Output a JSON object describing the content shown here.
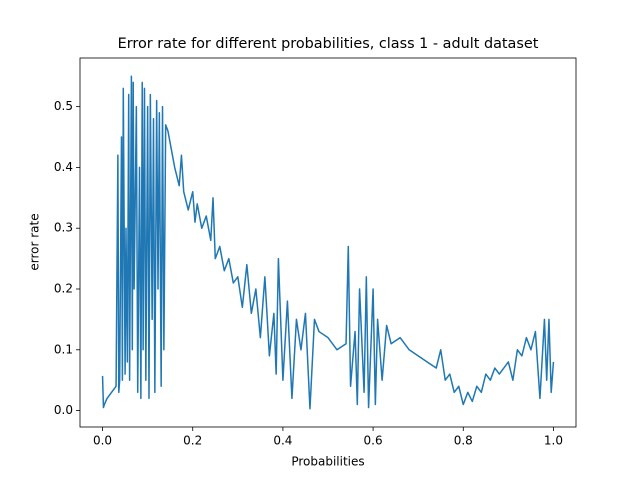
{
  "chart_data": {
    "type": "line",
    "title": "Error rate for different probabilities, class 1 - adult dataset",
    "xlabel": "Probabilities",
    "ylabel": "error rate",
    "xlim": [
      -0.05,
      1.05
    ],
    "ylim": [
      -0.027,
      0.58
    ],
    "xticks": [
      {
        "value": 0,
        "label": "0.0"
      },
      0.2,
      0.4,
      0.6,
      0.8,
      {
        "value": 1,
        "label": "1.0"
      }
    ],
    "yticks": [
      {
        "value": 0,
        "label": "0.0"
      },
      0.1,
      0.2,
      0.3,
      0.4,
      0.5
    ],
    "grid": false,
    "x": [
      0.0,
      0.002,
      0.004,
      0.01,
      0.02,
      0.03,
      0.034,
      0.036,
      0.038,
      0.042,
      0.044,
      0.046,
      0.05,
      0.052,
      0.055,
      0.058,
      0.06,
      0.064,
      0.066,
      0.068,
      0.07,
      0.075,
      0.078,
      0.082,
      0.085,
      0.088,
      0.09,
      0.093,
      0.096,
      0.1,
      0.103,
      0.106,
      0.11,
      0.113,
      0.116,
      0.12,
      0.123,
      0.126,
      0.13,
      0.133,
      0.136,
      0.14,
      0.145,
      0.15,
      0.16,
      0.17,
      0.175,
      0.18,
      0.19,
      0.2,
      0.205,
      0.21,
      0.22,
      0.23,
      0.24,
      0.245,
      0.25,
      0.26,
      0.27,
      0.28,
      0.29,
      0.3,
      0.31,
      0.32,
      0.33,
      0.34,
      0.35,
      0.36,
      0.37,
      0.38,
      0.385,
      0.39,
      0.4,
      0.41,
      0.42,
      0.43,
      0.44,
      0.45,
      0.46,
      0.47,
      0.48,
      0.5,
      0.52,
      0.54,
      0.545,
      0.55,
      0.56,
      0.565,
      0.57,
      0.58,
      0.585,
      0.59,
      0.6,
      0.605,
      0.61,
      0.62,
      0.63,
      0.64,
      0.66,
      0.68,
      0.7,
      0.72,
      0.74,
      0.75,
      0.76,
      0.77,
      0.78,
      0.79,
      0.8,
      0.81,
      0.82,
      0.83,
      0.84,
      0.85,
      0.86,
      0.87,
      0.88,
      0.9,
      0.91,
      0.92,
      0.93,
      0.94,
      0.95,
      0.96,
      0.97,
      0.98,
      0.985,
      0.99,
      0.995,
      1.0
    ],
    "series": [
      {
        "color": "#1f77b4",
        "values": [
          0.057,
          0.005,
          0.01,
          0.02,
          0.03,
          0.04,
          0.42,
          0.03,
          0.05,
          0.45,
          0.05,
          0.53,
          0.06,
          0.3,
          0.08,
          0.52,
          0.05,
          0.55,
          0.1,
          0.54,
          0.2,
          0.5,
          0.03,
          0.4,
          0.02,
          0.54,
          0.1,
          0.53,
          0.05,
          0.5,
          0.02,
          0.52,
          0.15,
          0.48,
          0.03,
          0.51,
          0.2,
          0.49,
          0.04,
          0.5,
          0.1,
          0.47,
          0.46,
          0.44,
          0.4,
          0.37,
          0.42,
          0.36,
          0.33,
          0.36,
          0.31,
          0.34,
          0.3,
          0.32,
          0.28,
          0.35,
          0.25,
          0.27,
          0.23,
          0.25,
          0.21,
          0.22,
          0.17,
          0.24,
          0.16,
          0.2,
          0.12,
          0.22,
          0.09,
          0.16,
          0.06,
          0.25,
          0.05,
          0.18,
          0.02,
          0.15,
          0.1,
          0.16,
          0.003,
          0.15,
          0.13,
          0.12,
          0.1,
          0.11,
          0.27,
          0.04,
          0.13,
          0.01,
          0.2,
          0.03,
          0.22,
          0.005,
          0.2,
          0.01,
          0.15,
          0.05,
          0.14,
          0.11,
          0.12,
          0.1,
          0.09,
          0.08,
          0.07,
          0.1,
          0.05,
          0.06,
          0.03,
          0.04,
          0.01,
          0.03,
          0.015,
          0.04,
          0.03,
          0.06,
          0.05,
          0.07,
          0.06,
          0.08,
          0.05,
          0.1,
          0.09,
          0.12,
          0.1,
          0.13,
          0.02,
          0.15,
          0.05,
          0.15,
          0.03,
          0.08
        ]
      }
    ]
  }
}
